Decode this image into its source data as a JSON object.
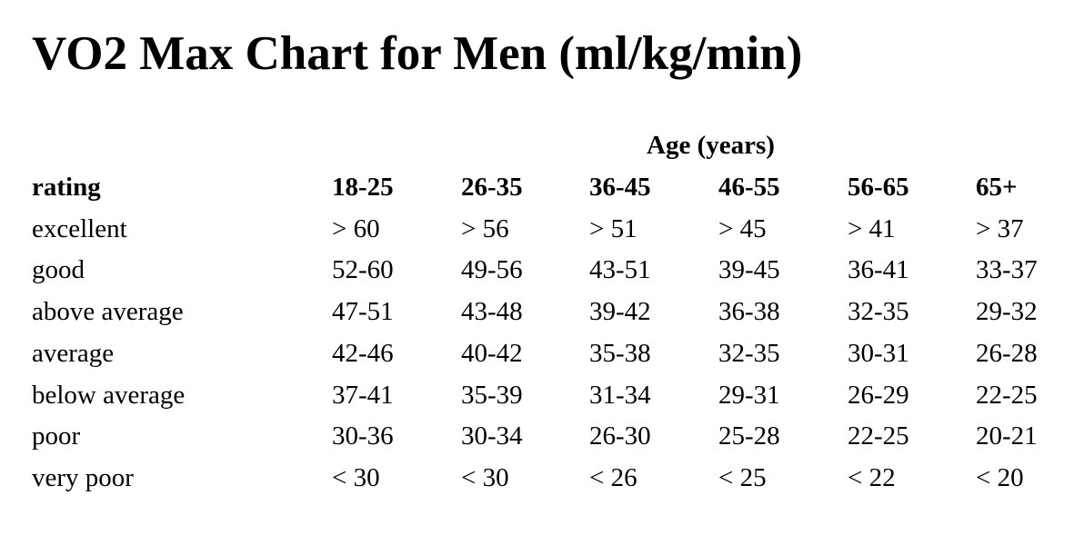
{
  "title": "VO2 Max Chart for Men (ml/kg/min)",
  "table": {
    "group_header": "Age (years)",
    "columns": [
      "rating",
      "18-25",
      "26-35",
      "36-45",
      "46-55",
      "56-65",
      "65+"
    ],
    "rows": [
      [
        "excellent",
        "> 60",
        "> 56",
        "> 51",
        "> 45",
        "> 41",
        "> 37"
      ],
      [
        "good",
        "52-60",
        "49-56",
        "43-51",
        "39-45",
        "36-41",
        "33-37"
      ],
      [
        "above average",
        "47-51",
        "43-48",
        "39-42",
        "36-38",
        "32-35",
        "29-32"
      ],
      [
        "average",
        "42-46",
        "40-42",
        "35-38",
        "32-35",
        "30-31",
        "26-28"
      ],
      [
        "below average",
        "37-41",
        "35-39",
        "31-34",
        "29-31",
        "26-29",
        "22-25"
      ],
      [
        "poor",
        "30-36",
        "30-34",
        "26-30",
        "25-28",
        "22-25",
        "20-21"
      ],
      [
        "very poor",
        "< 30",
        "< 30",
        "< 26",
        "< 25",
        "< 22",
        "< 20"
      ]
    ]
  }
}
